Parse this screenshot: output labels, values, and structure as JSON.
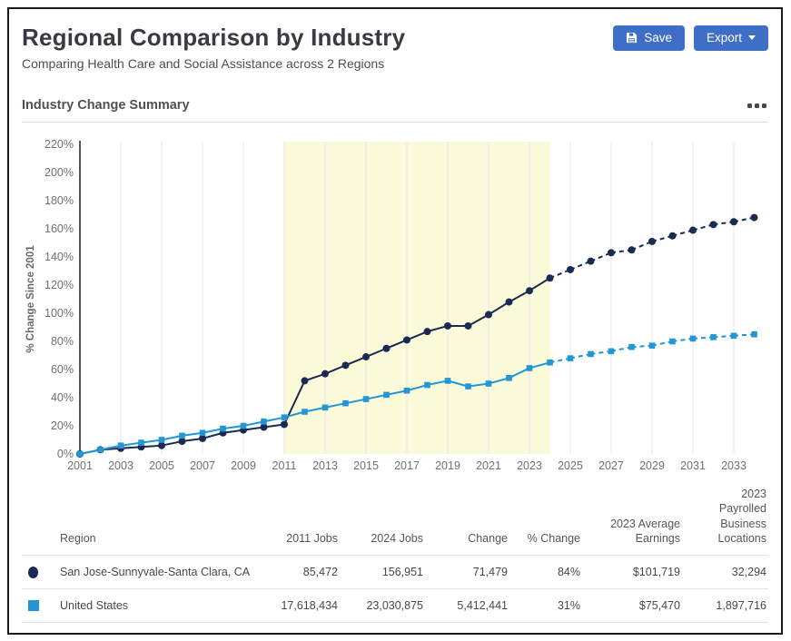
{
  "header": {
    "title": "Regional Comparison by Industry",
    "subtitle": "Comparing Health Care and Social Assistance across 2 Regions",
    "save_label": "Save",
    "export_label": "Export",
    "button_color": "#3e6ec6",
    "icons": {
      "save": "floppy-disk-icon",
      "export": "caret-down-icon"
    }
  },
  "section": {
    "title": "Industry Change Summary",
    "more_icon": "ellipsis-icon"
  },
  "chart_data": {
    "type": "line",
    "title": "",
    "xlabel": "",
    "ylabel": "% Change Since 2001",
    "ylim": [
      0,
      220
    ],
    "y_tick_step": 20,
    "y_tick_suffix": "%",
    "x_tick_interval": 2,
    "last_labeled_year": 2033,
    "grid": "vertical",
    "legend_position": "table-below",
    "highlight_band": {
      "from": 2011,
      "to": 2024,
      "color": "#fbfad9"
    },
    "projection_dashed_after": 2024,
    "x": [
      2001,
      2002,
      2003,
      2004,
      2005,
      2006,
      2007,
      2008,
      2009,
      2010,
      2011,
      2012,
      2013,
      2014,
      2015,
      2016,
      2017,
      2018,
      2019,
      2020,
      2021,
      2022,
      2023,
      2024,
      2025,
      2026,
      2027,
      2028,
      2029,
      2030,
      2031,
      2032,
      2033,
      2034
    ],
    "series": [
      {
        "name": "San Jose-Sunnyvale-Santa Clara, CA",
        "color": "#1b2a52",
        "marker": "circle",
        "values": [
          0,
          3,
          4,
          5,
          6,
          9,
          11,
          15,
          17,
          19,
          21,
          52,
          57,
          63,
          69,
          75,
          81,
          87,
          91,
          91,
          99,
          108,
          116,
          125,
          131,
          137,
          143,
          145,
          151,
          155,
          159,
          163,
          165,
          168
        ]
      },
      {
        "name": "United States",
        "color": "#2496d5",
        "marker": "square",
        "values": [
          0,
          3,
          6,
          8,
          10,
          13,
          15,
          18,
          20,
          23,
          26,
          30,
          33,
          36,
          39,
          42,
          45,
          49,
          52,
          48,
          50,
          54,
          61,
          65,
          68,
          71,
          73,
          76,
          77,
          80,
          82,
          83,
          84,
          85
        ]
      }
    ]
  },
  "table": {
    "columns": [
      "Region",
      "2011 Jobs",
      "2024 Jobs",
      "Change",
      "% Change",
      "2023 Average Earnings",
      "2023 Payrolled Business Locations"
    ],
    "rows": [
      {
        "region": "San Jose-Sunnyvale-Santa Clara, CA",
        "marker": "circle",
        "marker_color": "#1b2a52",
        "jobs_2011": "85,472",
        "jobs_2024": "156,951",
        "change": "71,479",
        "pct_change": "84%",
        "avg_earnings_2023": "$101,719",
        "payrolled_locations_2023": "32,294"
      },
      {
        "region": "United States",
        "marker": "square",
        "marker_color": "#2496d5",
        "jobs_2011": "17,618,434",
        "jobs_2024": "23,030,875",
        "change": "5,412,441",
        "pct_change": "31%",
        "avg_earnings_2023": "$75,470",
        "payrolled_locations_2023": "1,897,716"
      }
    ]
  }
}
